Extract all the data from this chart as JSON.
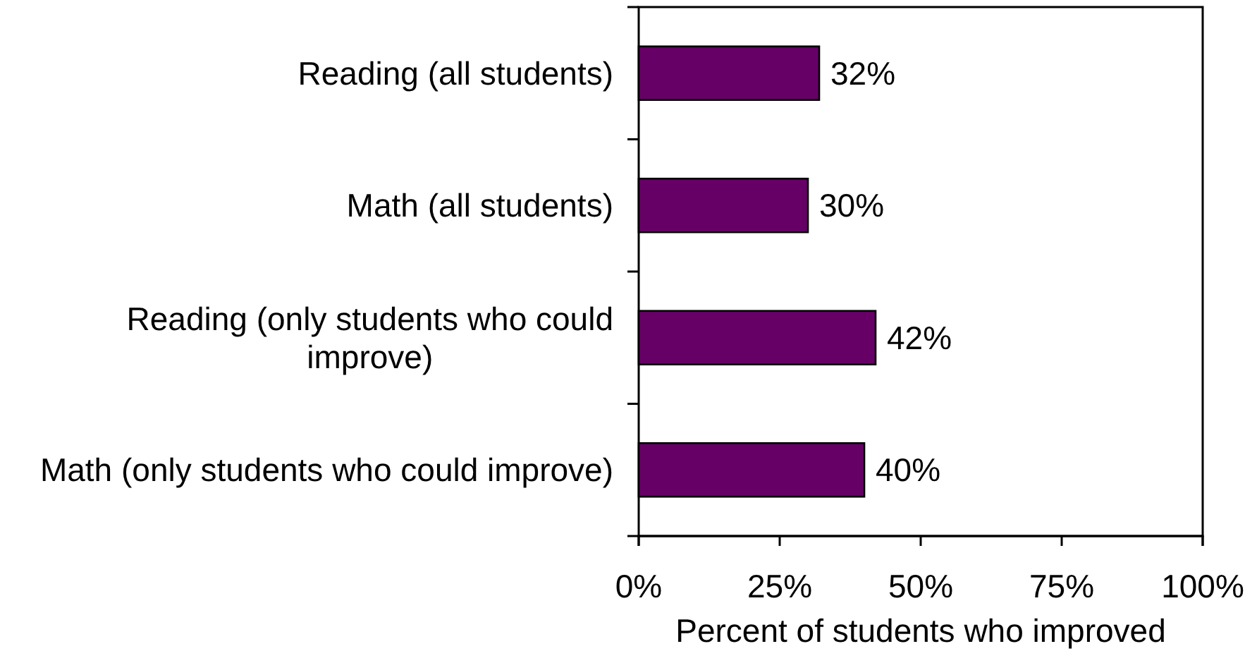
{
  "chart_data": {
    "type": "bar",
    "orientation": "horizontal",
    "categories": [
      "Reading (all students)",
      "Math (all students)",
      "Reading (only students who could improve)",
      "Math (only students who could improve)"
    ],
    "values": [
      32,
      30,
      42,
      40
    ],
    "color": "#660066",
    "value_labels": [
      "32%",
      "30%",
      "42%",
      "40%"
    ],
    "xlabel": "Percent of students who improved",
    "xlim": [
      0,
      100
    ],
    "xticks": [
      {
        "value": 0,
        "label": "0%"
      },
      {
        "value": 25,
        "label": "25%"
      },
      {
        "value": 50,
        "label": "50%"
      },
      {
        "value": 75,
        "label": "75%"
      },
      {
        "value": 100,
        "label": "100%"
      }
    ]
  }
}
